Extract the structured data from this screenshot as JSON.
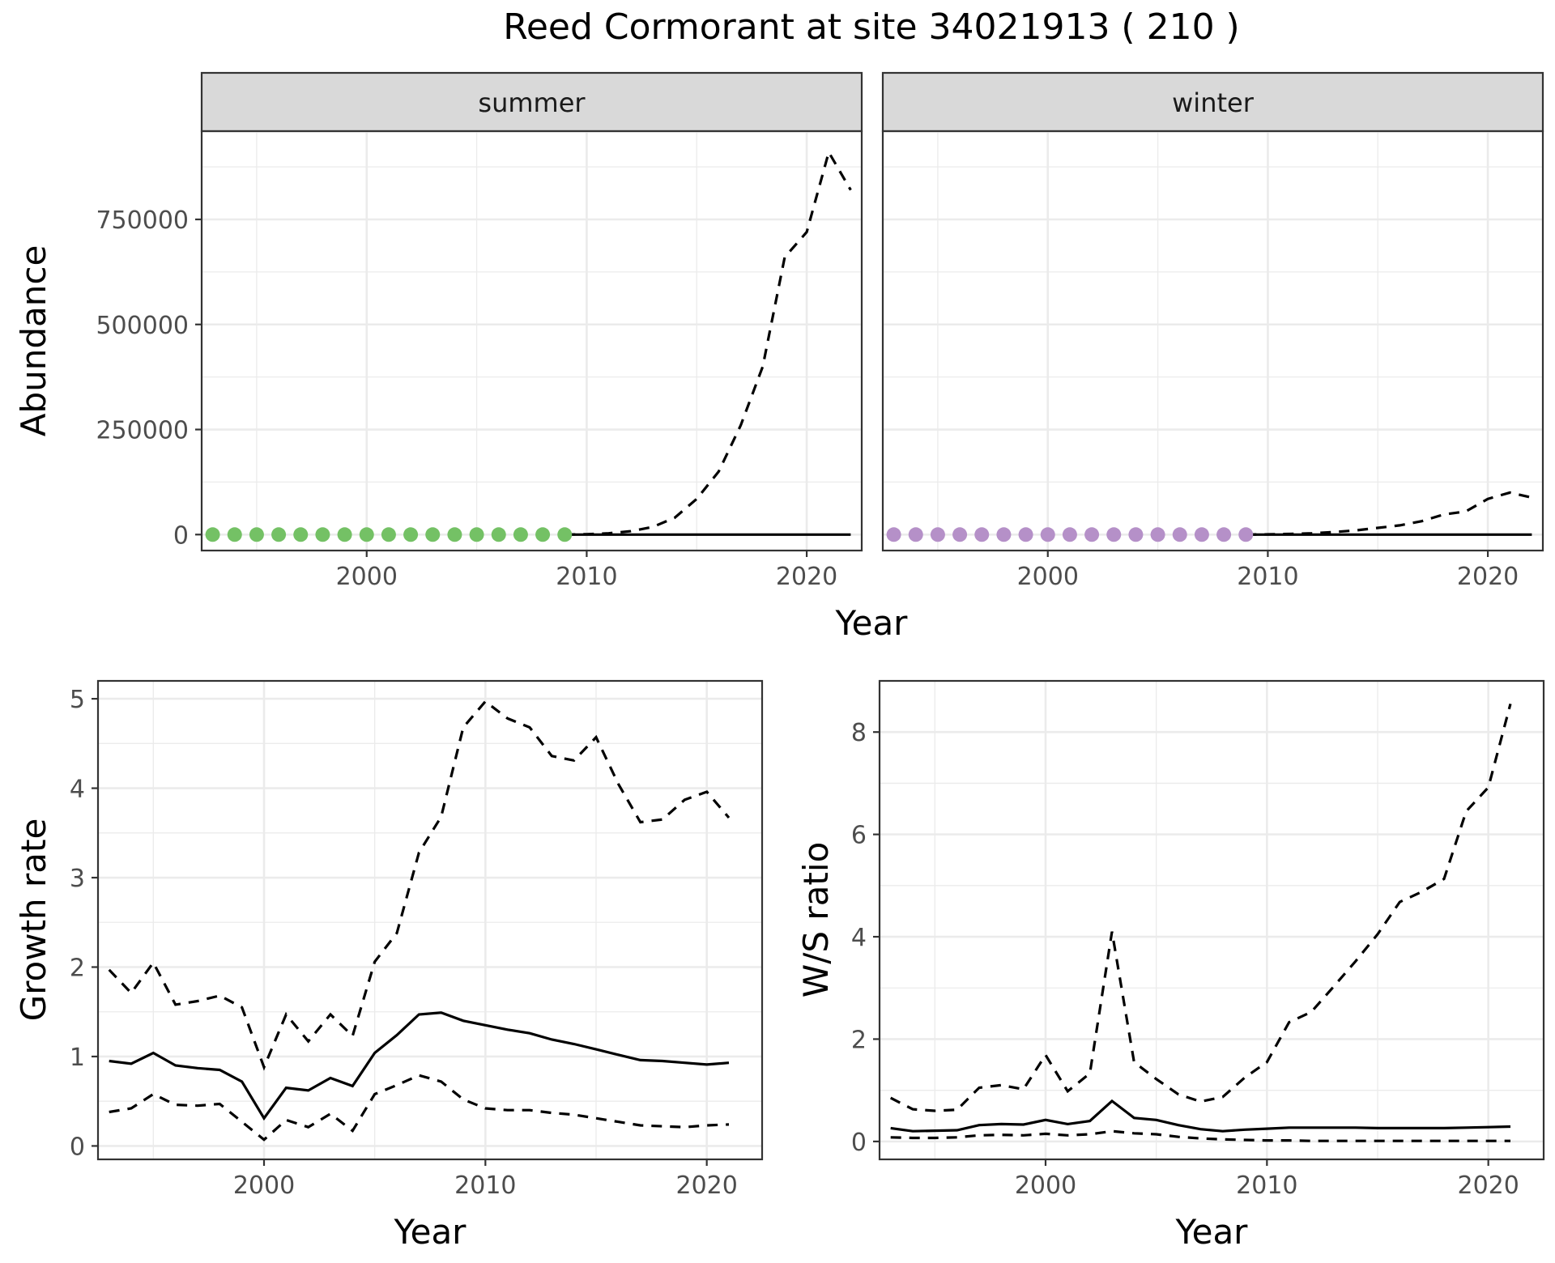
{
  "figure_title": "Reed Cormorant at site 34021913 ( 210 )",
  "colors": {
    "summer_points": "#74c165",
    "winter_points": "#b590c8",
    "lines": "#000000"
  },
  "chart_data": [
    {
      "id": "abundance",
      "type": "line",
      "facets": [
        "summer",
        "winter"
      ],
      "xlabel": "Year",
      "ylabel": "Abundance",
      "xlim": [
        1992.5,
        2022.5
      ],
      "ylim": [
        -38000,
        960000
      ],
      "x_ticks": [
        2000,
        2010,
        2020
      ],
      "y_ticks": [
        0,
        250000,
        500000,
        750000
      ],
      "panels": [
        {
          "facet": "summer",
          "points": {
            "x": [
              1993,
              1994,
              1995,
              1996,
              1997,
              1998,
              1999,
              2000,
              2001,
              2002,
              2003,
              2004,
              2005,
              2006,
              2007,
              2008,
              2009
            ],
            "y": [
              0,
              0,
              0,
              0,
              0,
              0,
              0,
              0,
              0,
              0,
              0,
              0,
              0,
              0,
              0,
              0,
              0
            ]
          },
          "series": [
            {
              "style": "solid",
              "x": [
                2009,
                2010,
                2011,
                2012,
                2013,
                2014,
                2015,
                2016,
                2017,
                2018,
                2019,
                2020,
                2021,
                2022
              ],
              "y": [
                0,
                0,
                0,
                0,
                0,
                0,
                0,
                0,
                0,
                0,
                0,
                0,
                0,
                0
              ]
            },
            {
              "style": "dashed",
              "x": [
                2009,
                2010,
                2011,
                2012,
                2013,
                2014,
                2015,
                2016,
                2017,
                2018,
                2019,
                2020,
                2021,
                2022
              ],
              "y": [
                0,
                1000,
                3000,
                8000,
                18000,
                40000,
                85000,
                150000,
                260000,
                400000,
                660000,
                720000,
                910000,
                820000
              ]
            }
          ]
        },
        {
          "facet": "winter",
          "points": {
            "x": [
              1993,
              1994,
              1995,
              1996,
              1997,
              1998,
              1999,
              2000,
              2001,
              2002,
              2003,
              2004,
              2005,
              2006,
              2007,
              2008,
              2009
            ],
            "y": [
              0,
              0,
              0,
              0,
              0,
              0,
              0,
              0,
              0,
              0,
              0,
              0,
              0,
              0,
              0,
              0,
              0
            ]
          },
          "series": [
            {
              "style": "solid",
              "x": [
                2009,
                2010,
                2011,
                2012,
                2013,
                2014,
                2015,
                2016,
                2017,
                2018,
                2019,
                2020,
                2021,
                2022
              ],
              "y": [
                0,
                0,
                0,
                0,
                0,
                0,
                0,
                0,
                0,
                0,
                0,
                0,
                0,
                0
              ]
            },
            {
              "style": "dashed",
              "x": [
                2009,
                2010,
                2011,
                2012,
                2013,
                2014,
                2015,
                2016,
                2017,
                2018,
                2019,
                2020,
                2021,
                2022
              ],
              "y": [
                0,
                500,
                1500,
                3000,
                6000,
                10000,
                16000,
                22000,
                32000,
                48000,
                55000,
                85000,
                100000,
                88000
              ]
            }
          ]
        }
      ]
    },
    {
      "id": "growth-rate",
      "type": "line",
      "xlabel": "Year",
      "ylabel": "Growth rate",
      "xlim": [
        1992.5,
        2022.5
      ],
      "ylim": [
        -0.15,
        5.2
      ],
      "x_ticks": [
        2000,
        2010,
        2020
      ],
      "y_ticks": [
        0,
        1,
        2,
        3,
        4,
        5
      ],
      "series": [
        {
          "style": "solid",
          "x": [
            1993,
            1994,
            1995,
            1996,
            1997,
            1998,
            1999,
            2000,
            2001,
            2002,
            2003,
            2004,
            2005,
            2006,
            2007,
            2008,
            2009,
            2010,
            2011,
            2012,
            2013,
            2014,
            2015,
            2016,
            2017,
            2018,
            2019,
            2020,
            2021
          ],
          "y": [
            0.95,
            0.92,
            1.04,
            0.9,
            0.87,
            0.85,
            0.72,
            0.31,
            0.65,
            0.62,
            0.76,
            0.67,
            1.04,
            1.24,
            1.47,
            1.49,
            1.4,
            1.35,
            1.3,
            1.26,
            1.19,
            1.14,
            1.08,
            1.02,
            0.96,
            0.95,
            0.93,
            0.91,
            0.93
          ]
        },
        {
          "style": "dashed",
          "x": [
            1993,
            1994,
            1995,
            1996,
            1997,
            1998,
            1999,
            2000,
            2001,
            2002,
            2003,
            2004,
            2005,
            2006,
            2007,
            2008,
            2009,
            2010,
            2011,
            2012,
            2013,
            2014,
            2015,
            2016,
            2017,
            2018,
            2019,
            2020,
            2021
          ],
          "y": [
            1.97,
            1.71,
            2.05,
            1.58,
            1.62,
            1.68,
            1.55,
            0.88,
            1.47,
            1.17,
            1.47,
            1.23,
            2.06,
            2.38,
            3.28,
            3.68,
            4.68,
            4.97,
            4.78,
            4.68,
            4.36,
            4.31,
            4.57,
            4.05,
            3.62,
            3.65,
            3.87,
            3.96,
            3.67
          ]
        },
        {
          "style": "dashed",
          "x": [
            1993,
            1994,
            1995,
            1996,
            1997,
            1998,
            1999,
            2000,
            2001,
            2002,
            2003,
            2004,
            2005,
            2006,
            2007,
            2008,
            2009,
            2010,
            2011,
            2012,
            2013,
            2014,
            2015,
            2016,
            2017,
            2018,
            2019,
            2020,
            2021
          ],
          "y": [
            0.38,
            0.42,
            0.58,
            0.46,
            0.45,
            0.47,
            0.27,
            0.07,
            0.29,
            0.21,
            0.36,
            0.17,
            0.58,
            0.68,
            0.79,
            0.72,
            0.52,
            0.42,
            0.4,
            0.4,
            0.37,
            0.35,
            0.31,
            0.27,
            0.23,
            0.22,
            0.21,
            0.23,
            0.24
          ]
        }
      ]
    },
    {
      "id": "ws-ratio",
      "type": "line",
      "xlabel": "Year",
      "ylabel": "W/S ratio",
      "xlim": [
        1992.5,
        2022.5
      ],
      "ylim": [
        -0.35,
        9.0
      ],
      "x_ticks": [
        2000,
        2010,
        2020
      ],
      "y_ticks": [
        0,
        2,
        4,
        6,
        8
      ],
      "series": [
        {
          "style": "solid",
          "x": [
            1993,
            1994,
            1995,
            1996,
            1997,
            1998,
            1999,
            2000,
            2001,
            2002,
            2003,
            2004,
            2005,
            2006,
            2007,
            2008,
            2009,
            2010,
            2011,
            2012,
            2013,
            2014,
            2015,
            2016,
            2017,
            2018,
            2019,
            2020,
            2021
          ],
          "y": [
            0.26,
            0.2,
            0.21,
            0.22,
            0.32,
            0.34,
            0.33,
            0.42,
            0.34,
            0.4,
            0.79,
            0.46,
            0.42,
            0.32,
            0.24,
            0.2,
            0.23,
            0.25,
            0.27,
            0.27,
            0.27,
            0.27,
            0.26,
            0.26,
            0.26,
            0.26,
            0.27,
            0.28,
            0.29
          ]
        },
        {
          "style": "dashed",
          "x": [
            1993,
            1994,
            1995,
            1996,
            1997,
            1998,
            1999,
            2000,
            2001,
            2002,
            2003,
            2004,
            2005,
            2006,
            2007,
            2008,
            2009,
            2010,
            2011,
            2012,
            2013,
            2014,
            2015,
            2016,
            2017,
            2018,
            2019,
            2020,
            2021
          ],
          "y": [
            0.85,
            0.63,
            0.6,
            0.62,
            1.05,
            1.1,
            1.02,
            1.69,
            0.98,
            1.33,
            4.1,
            1.55,
            1.22,
            0.92,
            0.78,
            0.87,
            1.25,
            1.55,
            2.33,
            2.53,
            3.02,
            3.52,
            4.05,
            4.68,
            4.88,
            5.13,
            6.45,
            6.92,
            8.55
          ]
        },
        {
          "style": "dashed",
          "x": [
            1993,
            1994,
            1995,
            1996,
            1997,
            1998,
            1999,
            2000,
            2001,
            2002,
            2003,
            2004,
            2005,
            2006,
            2007,
            2008,
            2009,
            2010,
            2011,
            2012,
            2013,
            2014,
            2015,
            2016,
            2017,
            2018,
            2019,
            2020,
            2021
          ],
          "y": [
            0.08,
            0.07,
            0.07,
            0.08,
            0.12,
            0.13,
            0.12,
            0.15,
            0.12,
            0.14,
            0.2,
            0.16,
            0.14,
            0.09,
            0.06,
            0.04,
            0.03,
            0.02,
            0.02,
            0.01,
            0.01,
            0.01,
            0.01,
            0.01,
            0.01,
            0.01,
            0.01,
            0.01,
            0.01
          ]
        }
      ]
    }
  ]
}
